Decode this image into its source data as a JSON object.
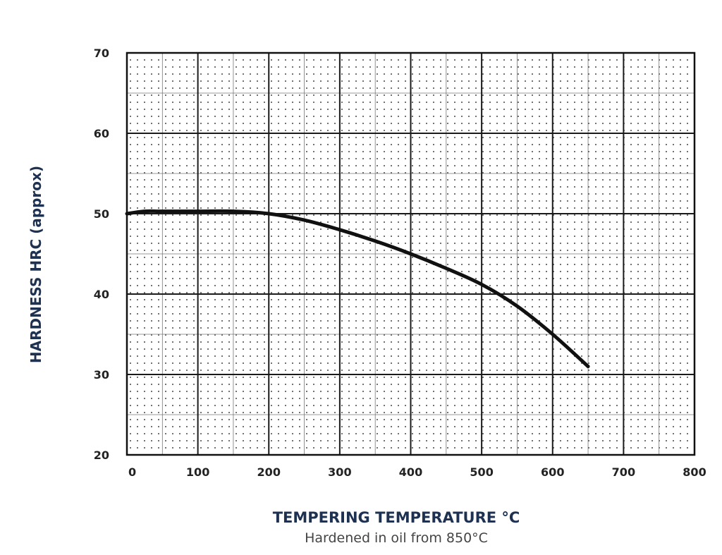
{
  "chart_data": {
    "type": "line",
    "title": "",
    "xlabel": "TEMPERING TEMPERATURE °C",
    "subtitle": "Hardened in oil from 850°C",
    "ylabel": "HARDNESS HRC (approx)",
    "xlim": [
      0,
      800
    ],
    "ylim": [
      20,
      70
    ],
    "x_ticks": [
      0,
      100,
      200,
      300,
      400,
      500,
      600,
      700,
      800
    ],
    "y_ticks": [
      20,
      30,
      40,
      50,
      60,
      70
    ],
    "grid": true,
    "legend": "none",
    "series": [
      {
        "x": [
          0,
          25,
          50,
          100,
          150,
          200,
          250,
          300,
          350,
          400,
          450,
          500,
          550,
          600,
          650
        ],
        "y": [
          50,
          50.3,
          50.3,
          50.3,
          50.3,
          50.0,
          49.2,
          48.0,
          46.6,
          45.0,
          43.2,
          41.2,
          38.5,
          35.0,
          31.0
        ]
      }
    ],
    "colors": {
      "curve": "#111111",
      "grid": "#1a1a1a",
      "ylabel": "#1e3150",
      "xlabel": "#1e3150",
      "caption": "#444444"
    }
  }
}
